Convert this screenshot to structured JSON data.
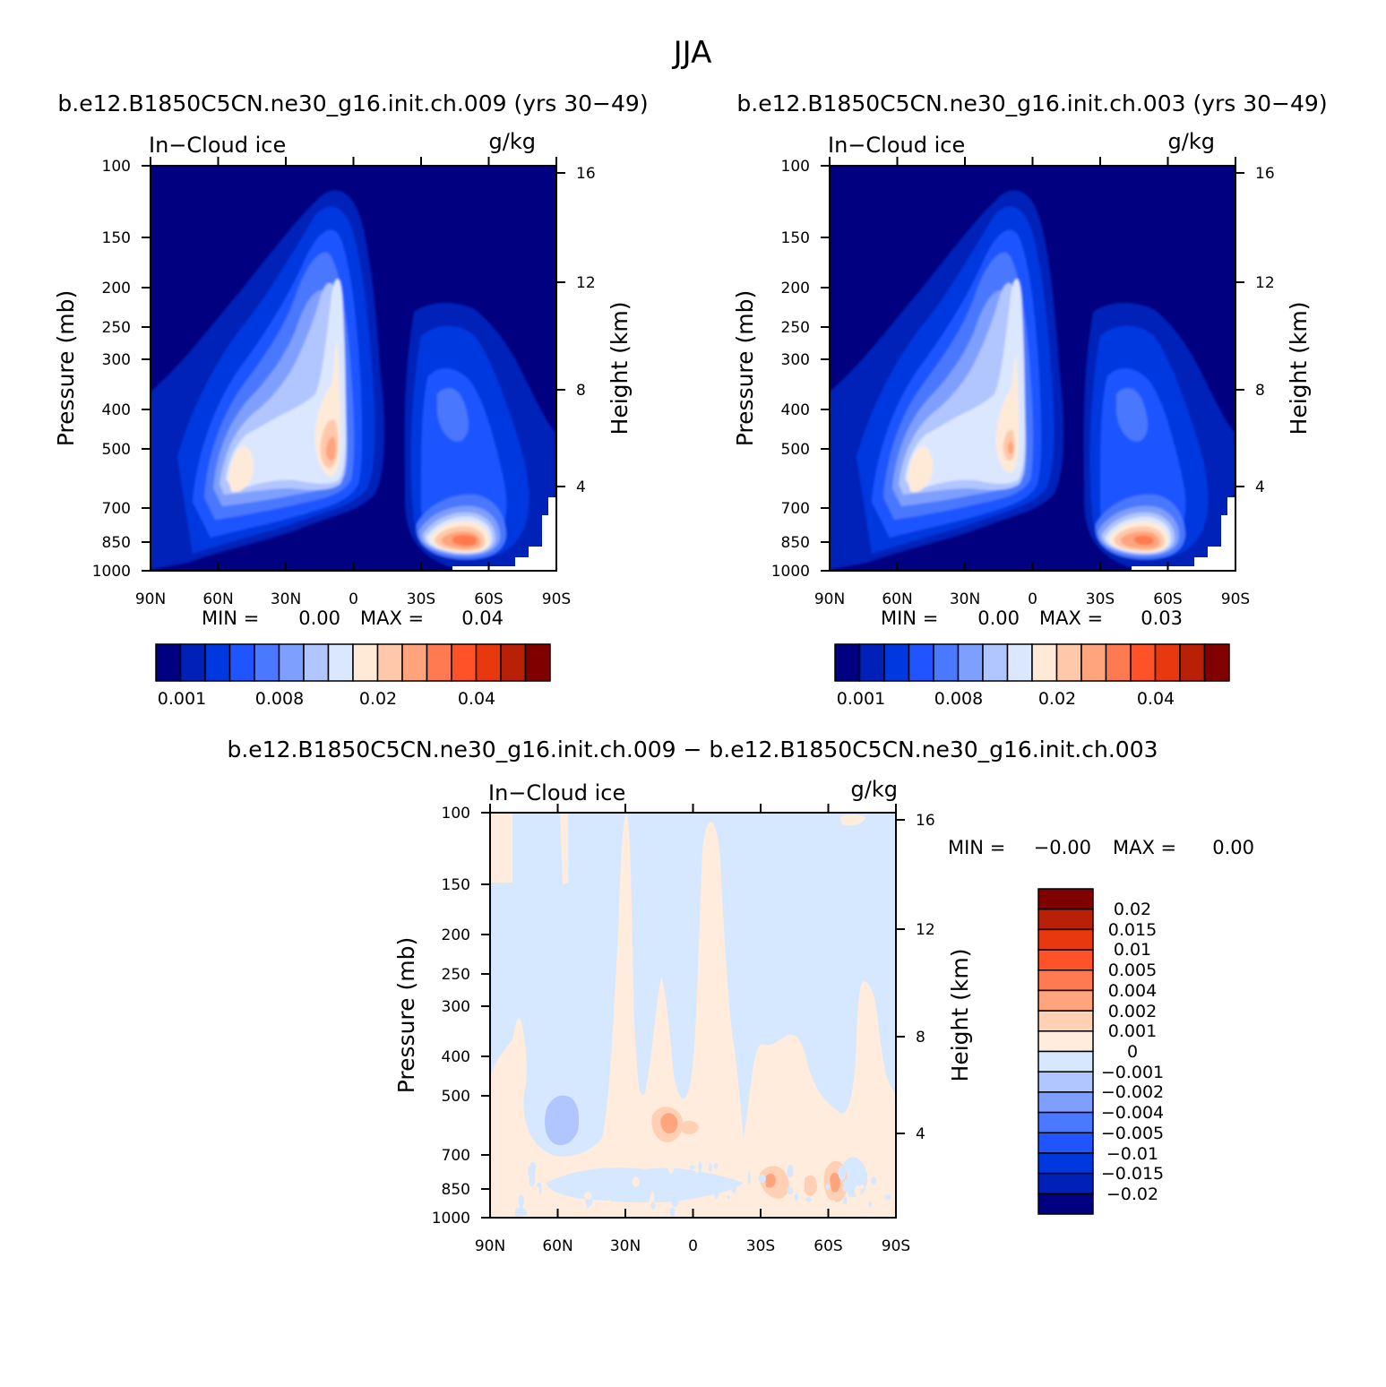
{
  "figure_title": "JJA",
  "colors": {
    "main_scale": [
      "#000080",
      "#0020b8",
      "#0038e0",
      "#1f54ff",
      "#4a78ff",
      "#7f9fff",
      "#b1c5ff",
      "#dbe7ff",
      "#ffead8",
      "#ffc8ab",
      "#ffa47c",
      "#ff7a50",
      "#ff5228",
      "#e83810",
      "#b82008",
      "#800000"
    ],
    "diff_scale": [
      "#000080",
      "#0020b8",
      "#0038e0",
      "#1f54ff",
      "#4a78ff",
      "#7f9fff",
      "#b1c5ff",
      "#d6e8ff",
      "#ffecdc",
      "#ffd0b4",
      "#ffa47c",
      "#ff7a50",
      "#ff5228",
      "#e83810",
      "#b82008",
      "#800000"
    ]
  },
  "chart_data": [
    {
      "type": "heatmap",
      "title": "b.e12.B1850C5CN.ne30_g16.init.ch.009 (yrs 30-49)",
      "left_label": "In-Cloud ice",
      "right_label": "g/kg",
      "xlabel": "",
      "ylabel": "Pressure (mb)",
      "y2label": "Height (km)",
      "x_ticks": [
        "90N",
        "60N",
        "30N",
        "0",
        "30S",
        "60S",
        "90S"
      ],
      "y_ticks": [
        "100",
        "150",
        "200",
        "250",
        "300",
        "400",
        "500",
        "700",
        "850",
        "1000"
      ],
      "y_scale": "log",
      "y2_ticks": [
        "16",
        "12",
        "8",
        "4"
      ],
      "stats": {
        "min_label": "MIN =",
        "min": "0.00",
        "max_label": "MAX =",
        "max": "0.04"
      },
      "colorbar_labels": [
        "0.001",
        "0.008",
        "0.02",
        "0.04"
      ],
      "features": [
        {
          "lat": 8,
          "p": 510,
          "max": 0.04
        },
        {
          "lat": 50,
          "p": 560,
          "max": 0.02
        },
        {
          "lat": -57,
          "p": 830,
          "max": 0.04
        }
      ]
    },
    {
      "type": "heatmap",
      "title": "b.e12.B1850C5CN.ne30_g16.init.ch.003 (yrs 30-49)",
      "left_label": "In-Cloud ice",
      "right_label": "g/kg",
      "xlabel": "",
      "ylabel": "Pressure (mb)",
      "y2label": "Height (km)",
      "x_ticks": [
        "90N",
        "60N",
        "30N",
        "0",
        "30S",
        "60S",
        "90S"
      ],
      "y_ticks": [
        "100",
        "150",
        "200",
        "250",
        "300",
        "400",
        "500",
        "700",
        "850",
        "1000"
      ],
      "y_scale": "log",
      "y2_ticks": [
        "16",
        "12",
        "8",
        "4"
      ],
      "stats": {
        "min_label": "MIN =",
        "min": "0.00",
        "max_label": "MAX =",
        "max": "0.03"
      },
      "colorbar_labels": [
        "0.001",
        "0.008",
        "0.02",
        "0.04"
      ],
      "features": [
        {
          "lat": 8,
          "p": 500,
          "max": 0.03
        },
        {
          "lat": 50,
          "p": 560,
          "max": 0.02
        },
        {
          "lat": -57,
          "p": 830,
          "max": 0.03
        }
      ]
    },
    {
      "type": "heatmap",
      "title": "b.e12.B1850C5CN.ne30_g16.init.ch.009 - b.e12.B1850C5CN.ne30_g16.init.ch.003",
      "left_label": "In-Cloud ice",
      "right_label": "g/kg",
      "xlabel": "",
      "ylabel": "Pressure (mb)",
      "y2label": "Height (km)",
      "x_ticks": [
        "90N",
        "60N",
        "30N",
        "0",
        "30S",
        "60S",
        "90S"
      ],
      "y_ticks": [
        "100",
        "150",
        "200",
        "250",
        "300",
        "400",
        "500",
        "700",
        "850",
        "1000"
      ],
      "y_scale": "log",
      "y2_ticks": [
        "16",
        "12",
        "8",
        "4"
      ],
      "stats": {
        "min_label": "MIN =",
        "min": "-0.00",
        "max_label": "MAX =",
        "max": "0.00"
      },
      "colorbar_labels": [
        "0.02",
        "0.015",
        "0.01",
        "0.005",
        "0.004",
        "0.002",
        "0.001",
        "0",
        "-0.001",
        "-0.002",
        "-0.004",
        "-0.005",
        "-0.01",
        "-0.015",
        "-0.02"
      ],
      "features": [
        {
          "lat": 12,
          "p": 580,
          "value": 0.002
        },
        {
          "lat": -33,
          "p": 830,
          "value": 0.002
        },
        {
          "lat": -63,
          "p": 830,
          "value": 0.002
        },
        {
          "lat": 60,
          "p": 580,
          "value": -0.002
        }
      ]
    }
  ]
}
